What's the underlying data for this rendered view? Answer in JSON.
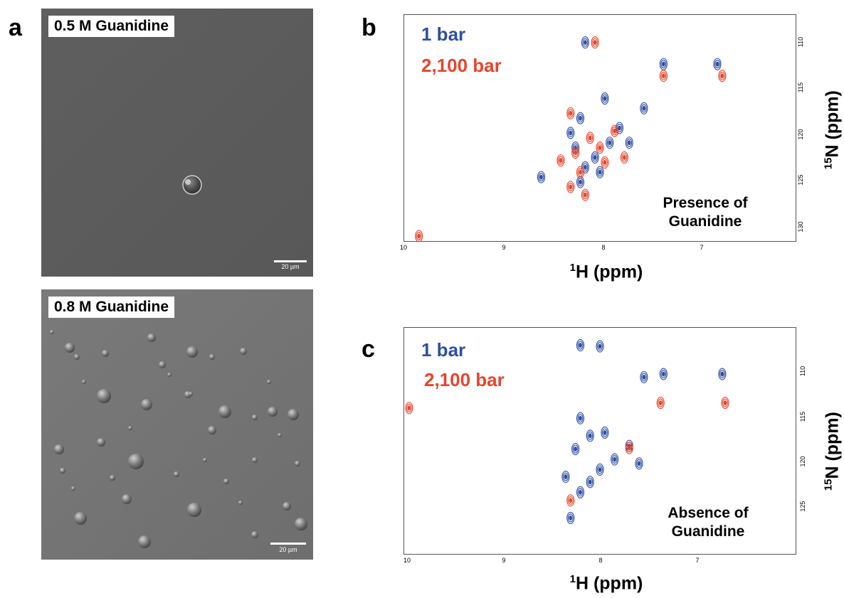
{
  "panels": {
    "a": {
      "letter": "a",
      "top": {
        "label": "0.5 M Guanidine",
        "scale": "20 µm"
      },
      "bottom": {
        "label": "0.8 M Guanidine",
        "scale": "20 µm"
      }
    },
    "b": {
      "letter": "b",
      "legend": [
        "1 bar",
        "2,100 bar"
      ],
      "note_line1": "Presence of",
      "note_line2": "Guanidine",
      "xticks": [
        "10",
        "9",
        "8",
        "7"
      ],
      "yticks": [
        "110",
        "115",
        "120",
        "125",
        "130"
      ]
    },
    "c": {
      "letter": "c",
      "legend": [
        "1 bar",
        "2,100 bar"
      ],
      "note_line1": "Absence of",
      "note_line2": "Guanidine",
      "xticks": [
        "10",
        "9",
        "8",
        "7"
      ],
      "yticks": [
        "110",
        "115",
        "120",
        "125"
      ]
    }
  },
  "axes": {
    "x_sup": "1",
    "x_main": "H (ppm)",
    "y_sup": "15",
    "y_main": "N (ppm)"
  },
  "colors": {
    "blue": "#2e4fa3",
    "red": "#e8452c",
    "cyan": "#4fb3c8"
  },
  "chart_data": [
    {
      "type": "scatter",
      "panel": "b",
      "xlabel": "1H (ppm)",
      "ylabel": "15N (ppm)",
      "xlim": [
        10.0,
        6.0
      ],
      "ylim": [
        108.0,
        131.0
      ],
      "series": [
        {
          "name": "1 bar",
          "color": "#2e4fa3",
          "points": [
            [
              8.15,
              110.8
            ],
            [
              6.8,
              113.0
            ],
            [
              7.35,
              113.0
            ],
            [
              7.95,
              116.5
            ],
            [
              7.55,
              117.5
            ],
            [
              7.8,
              119.5
            ],
            [
              8.2,
              118.5
            ],
            [
              8.3,
              120.0
            ],
            [
              8.25,
              121.5
            ],
            [
              8.05,
              122.5
            ],
            [
              8.15,
              123.5
            ],
            [
              8.0,
              124.0
            ],
            [
              7.9,
              121.0
            ],
            [
              8.6,
              124.5
            ],
            [
              8.2,
              125.0
            ],
            [
              7.7,
              121.0
            ]
          ]
        },
        {
          "name": "2,100 bar",
          "color": "#e8452c",
          "points": [
            [
              8.05,
              110.8
            ],
            [
              7.35,
              114.2
            ],
            [
              6.75,
              114.2
            ],
            [
              7.85,
              119.8
            ],
            [
              8.1,
              120.5
            ],
            [
              8.25,
              122.0
            ],
            [
              8.0,
              121.5
            ],
            [
              7.95,
              123.0
            ],
            [
              8.2,
              124.0
            ],
            [
              8.3,
              125.5
            ],
            [
              8.15,
              126.3
            ],
            [
              8.4,
              122.8
            ],
            [
              7.75,
              122.5
            ],
            [
              9.85,
              130.5
            ],
            [
              8.3,
              118.0
            ]
          ]
        }
      ]
    },
    {
      "type": "scatter",
      "panel": "c",
      "xlabel": "1H (ppm)",
      "ylabel": "15N (ppm)",
      "xlim": [
        10.0,
        6.0
      ],
      "ylim": [
        107.0,
        129.0
      ],
      "series": [
        {
          "name": "1 bar",
          "color": "#2e4fa3",
          "points": [
            [
              7.35,
              111.5
            ],
            [
              6.75,
              111.5
            ],
            [
              7.55,
              111.8
            ],
            [
              8.2,
              108.7
            ],
            [
              8.0,
              108.8
            ],
            [
              8.2,
              115.8
            ],
            [
              7.95,
              117.2
            ],
            [
              8.1,
              117.5
            ],
            [
              7.7,
              118.5
            ],
            [
              7.85,
              119.8
            ],
            [
              8.0,
              120.8
            ],
            [
              8.25,
              118.8
            ],
            [
              8.35,
              121.5
            ],
            [
              8.2,
              123.0
            ],
            [
              8.3,
              125.5
            ],
            [
              8.1,
              122.0
            ],
            [
              7.6,
              120.2
            ]
          ]
        },
        {
          "name": "2,100 bar",
          "color": "#e8452c",
          "points": [
            [
              7.38,
              114.3
            ],
            [
              6.72,
              114.3
            ],
            [
              7.7,
              118.7
            ],
            [
              8.3,
              123.8
            ],
            [
              9.95,
              114.8
            ]
          ]
        }
      ]
    }
  ]
}
